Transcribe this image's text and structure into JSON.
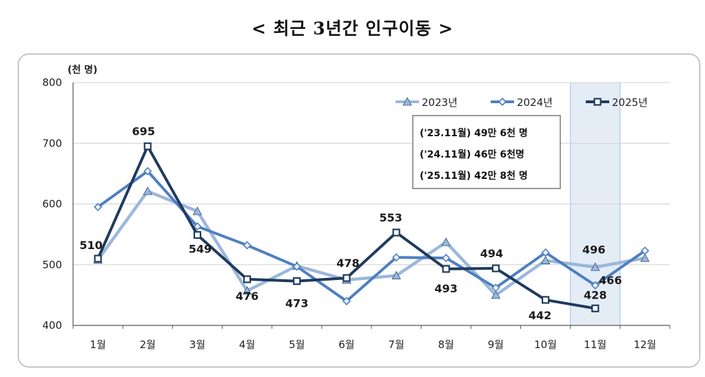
{
  "title": "< 최근 3년간 인구이동 >",
  "chart_data": {
    "type": "line",
    "unit_label": "(천 명)",
    "categories": [
      "1월",
      "2월",
      "3월",
      "4월",
      "5월",
      "6월",
      "7월",
      "8월",
      "9월",
      "10월",
      "11월",
      "12월"
    ],
    "ylim": [
      400,
      800
    ],
    "yticks": [
      400,
      500,
      600,
      700,
      800
    ],
    "grid": true,
    "legend_position": "top-right",
    "highlight_category": "11월",
    "series": [
      {
        "name": "2023년",
        "color": "#9bb7db",
        "marker": "triangle",
        "values": [
          508,
          621,
          588,
          457,
          498,
          475,
          482,
          537,
          450,
          507,
          496,
          511
        ]
      },
      {
        "name": "2024년",
        "color": "#4f7fc0",
        "marker": "diamond",
        "values": [
          595,
          654,
          563,
          532,
          497,
          440,
          512,
          511,
          462,
          520,
          466,
          523
        ]
      },
      {
        "name": "2025년",
        "color": "#1f3a5f",
        "marker": "square",
        "values": [
          510,
          695,
          549,
          476,
          473,
          478,
          553,
          493,
          494,
          442,
          428,
          null
        ]
      }
    ],
    "data_labels": [
      {
        "text": "510",
        "series": "2025년",
        "index": 0,
        "dx": -10,
        "dy": -20
      },
      {
        "text": "695",
        "series": "2025년",
        "index": 1,
        "dx": -6,
        "dy": -22
      },
      {
        "text": "549",
        "series": "2025년",
        "index": 2,
        "dx": 4,
        "dy": 20
      },
      {
        "text": "476",
        "series": "2025년",
        "index": 3,
        "dx": 0,
        "dy": 24
      },
      {
        "text": "473",
        "series": "2025년",
        "index": 4,
        "dx": 0,
        "dy": 32
      },
      {
        "text": "478",
        "series": "2025년",
        "index": 5,
        "dx": 2,
        "dy": -22
      },
      {
        "text": "553",
        "series": "2025년",
        "index": 6,
        "dx": -8,
        "dy": -22
      },
      {
        "text": "493",
        "series": "2025년",
        "index": 7,
        "dx": 0,
        "dy": 28
      },
      {
        "text": "494",
        "series": "2025년",
        "index": 8,
        "dx": -6,
        "dy": -22
      },
      {
        "text": "442",
        "series": "2025년",
        "index": 9,
        "dx": -8,
        "dy": 22
      },
      {
        "text": "496",
        "series": "2023년",
        "index": 10,
        "dx": -2,
        "dy": -26
      },
      {
        "text": "466",
        "series": "2024년",
        "index": 10,
        "dx": 22,
        "dy": -8
      },
      {
        "text": "428",
        "series": "2025년",
        "index": 10,
        "dx": 0,
        "dy": -20
      }
    ],
    "annotation": [
      "('23.11월) 49만 6천 명",
      "('24.11월) 46만 6천명",
      "('25.11월) 42만 8천 명"
    ]
  }
}
